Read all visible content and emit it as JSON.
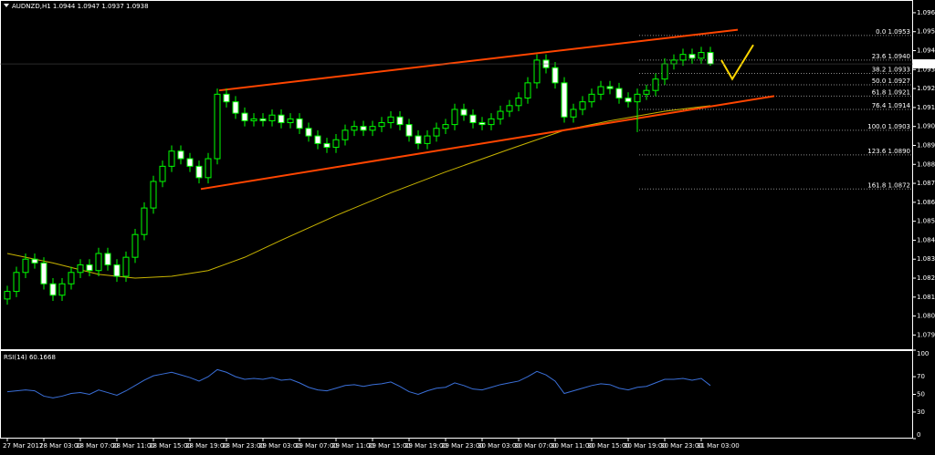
{
  "chart_data": [
    {
      "type": "candlestick",
      "title": "AUDNZD,H1  1.0944 1.0947 1.0937 1.0938",
      "open": [
        1.0814,
        1.0818,
        1.0828,
        1.0835,
        1.0833,
        1.0822,
        1.0816,
        1.0822,
        1.0828,
        1.0832,
        1.0829,
        1.0838,
        1.0832,
        1.0826,
        1.0836,
        1.0848,
        1.0862,
        1.0876,
        1.0884,
        1.0892,
        1.0888,
        1.0884,
        1.0878,
        1.0888,
        1.0922,
        1.0918,
        1.0912,
        1.0908,
        1.0909,
        1.0908,
        1.0911,
        1.0907,
        1.0909,
        1.0904,
        1.09,
        1.0896,
        1.0894,
        1.0898,
        1.0903,
        1.0905,
        1.0903,
        1.0905,
        1.0907,
        1.091,
        1.0906,
        1.09,
        1.0896,
        1.09,
        1.0904,
        1.0906,
        1.0914,
        1.0911,
        1.0907,
        1.0906,
        1.0909,
        1.0913,
        1.0916,
        1.092,
        1.0928,
        1.094,
        1.0936,
        1.0928,
        1.091,
        1.0914,
        1.0918,
        1.0922,
        1.0926,
        1.0925,
        1.092,
        1.0918,
        1.0922,
        1.0924,
        1.093,
        1.0938,
        1.094,
        1.0943,
        1.0941,
        1.0944
      ],
      "high": [
        1.0821,
        1.0831,
        1.0838,
        1.0838,
        1.0836,
        1.0825,
        1.0825,
        1.0831,
        1.0835,
        1.0835,
        1.0841,
        1.0841,
        1.0835,
        1.0839,
        1.0851,
        1.0865,
        1.0879,
        1.0887,
        1.0895,
        1.0895,
        1.0891,
        1.0887,
        1.0891,
        1.0925,
        1.0925,
        1.0921,
        1.0915,
        1.0912,
        1.0912,
        1.0914,
        1.0914,
        1.0912,
        1.0912,
        1.0907,
        1.0903,
        1.0899,
        1.0901,
        1.0906,
        1.0908,
        1.0908,
        1.0908,
        1.091,
        1.0913,
        1.0913,
        1.0909,
        1.0903,
        1.0903,
        1.0907,
        1.0909,
        1.0917,
        1.0917,
        1.0914,
        1.091,
        1.0912,
        1.0916,
        1.0919,
        1.0923,
        1.0931,
        1.0943,
        1.0943,
        1.0939,
        1.0931,
        1.0917,
        1.0921,
        1.0925,
        1.0929,
        1.0929,
        1.0928,
        1.0923,
        1.0925,
        1.0927,
        1.0933,
        1.0941,
        1.0943,
        1.0946,
        1.0946,
        1.0947,
        1.0947
      ],
      "low": [
        1.0811,
        1.0815,
        1.0825,
        1.083,
        1.0819,
        1.0813,
        1.0813,
        1.0819,
        1.0825,
        1.0826,
        1.0826,
        1.0829,
        1.0823,
        1.0823,
        1.0833,
        1.0845,
        1.0859,
        1.0873,
        1.0881,
        1.0885,
        1.0881,
        1.0875,
        1.0875,
        1.0885,
        1.0915,
        1.0909,
        1.0905,
        1.0905,
        1.0905,
        1.0905,
        1.0904,
        1.0904,
        1.0901,
        1.0897,
        1.0893,
        1.0891,
        1.0891,
        1.0895,
        1.09,
        1.09,
        1.09,
        1.0902,
        1.0904,
        1.0903,
        1.0897,
        1.0893,
        1.0893,
        1.0897,
        1.0901,
        1.0903,
        1.0908,
        1.0904,
        1.0903,
        1.0903,
        1.0906,
        1.091,
        1.0913,
        1.0917,
        1.0925,
        1.0933,
        1.0925,
        1.0907,
        1.0907,
        1.0911,
        1.0915,
        1.0919,
        1.0922,
        1.0917,
        1.0915,
        1.0902,
        1.0919,
        1.0921,
        1.0927,
        1.0935,
        1.0937,
        1.0938,
        1.0938,
        1.0937
      ],
      "close": [
        1.0818,
        1.0828,
        1.0835,
        1.0833,
        1.0822,
        1.0816,
        1.0822,
        1.0828,
        1.0832,
        1.0829,
        1.0838,
        1.0832,
        1.0826,
        1.0836,
        1.0848,
        1.0862,
        1.0876,
        1.0884,
        1.0892,
        1.0888,
        1.0884,
        1.0878,
        1.0888,
        1.0922,
        1.0918,
        1.0912,
        1.0908,
        1.0909,
        1.0908,
        1.0911,
        1.0907,
        1.0909,
        1.0904,
        1.09,
        1.0896,
        1.0894,
        1.0898,
        1.0903,
        1.0905,
        1.0903,
        1.0905,
        1.0907,
        1.091,
        1.0906,
        1.09,
        1.0896,
        1.09,
        1.0904,
        1.0906,
        1.0914,
        1.0911,
        1.0907,
        1.0906,
        1.0909,
        1.0913,
        1.0916,
        1.092,
        1.0928,
        1.094,
        1.0936,
        1.0928,
        1.091,
        1.0914,
        1.0918,
        1.0922,
        1.0926,
        1.0925,
        1.092,
        1.0918,
        1.0922,
        1.0924,
        1.093,
        1.0938,
        1.094,
        1.0943,
        1.0941,
        1.0944,
        1.0938
      ],
      "ma": {
        "color": "#c8b400",
        "x": [
          0,
          5,
          10,
          14,
          18,
          22,
          26,
          30,
          36,
          42,
          48,
          55,
          61,
          66,
          72,
          77
        ],
        "values": [
          1.0838,
          1.0833,
          1.0827,
          1.0825,
          1.0826,
          1.0829,
          1.0836,
          1.0845,
          1.0858,
          1.087,
          1.0881,
          1.0893,
          1.0903,
          1.0908,
          1.0913,
          1.0916
        ]
      },
      "trendlines": [
        {
          "color": "#ff4500",
          "x": [
            23.2,
            80
          ],
          "values": [
            1.0924,
            1.0956
          ]
        },
        {
          "color": "#ff4500",
          "x": [
            21.2,
            84
          ],
          "values": [
            1.0872,
            1.0921
          ]
        },
        {
          "color": "#ffd700",
          "x": [
            78.2,
            79.4,
            81.7
          ],
          "values": [
            1.094,
            1.093,
            1.0948
          ]
        }
      ],
      "fib_levels": [
        {
          "value": 1.0953,
          "label": "0.0  1.0953"
        },
        {
          "value": 1.094,
          "label": "23.6  1.0940"
        },
        {
          "value": 1.0933,
          "label": "38.2  1.0933"
        },
        {
          "value": 1.0927,
          "label": "50.0  1.0927"
        },
        {
          "value": 1.0921,
          "label": "61.8  1.0921"
        },
        {
          "value": 1.0914,
          "label": "76.4  1.0914"
        },
        {
          "value": 1.0903,
          "label": "100.0  1.0903"
        },
        {
          "value": 1.089,
          "label": "123.6  1.0890"
        },
        {
          "value": 1.0872,
          "label": "161.8  1.0872"
        }
      ],
      "current_price": 1.0938,
      "bull_color": "#000000",
      "bear_color": "#ffffff",
      "outline_color": "#00ff00",
      "xlim": [
        -0.8,
        99.2
      ],
      "xticks": [
        {
          "value": 0,
          "label": "27 Mar 2017"
        },
        {
          "value": 4,
          "label": "28 Mar 03:00"
        },
        {
          "value": 8,
          "label": "28 Mar 07:00"
        },
        {
          "value": 12,
          "label": "28 Mar 11:00"
        },
        {
          "value": 16,
          "label": "28 Mar 15:00"
        },
        {
          "value": 20,
          "label": "28 Mar 19:00"
        },
        {
          "value": 24,
          "label": "28 Mar 23:00"
        },
        {
          "value": 28,
          "label": "29 Mar 03:00"
        },
        {
          "value": 32,
          "label": "29 Mar 07:00"
        },
        {
          "value": 36,
          "label": "29 Mar 11:00"
        },
        {
          "value": 40,
          "label": "29 Mar 15:00"
        },
        {
          "value": 44,
          "label": "29 Mar 19:00"
        },
        {
          "value": 48,
          "label": "29 Mar 23:00"
        },
        {
          "value": 52,
          "label": "30 Mar 03:00"
        },
        {
          "value": 56,
          "label": "30 Mar 07:00"
        },
        {
          "value": 60,
          "label": "30 Mar 11:00"
        },
        {
          "value": 64,
          "label": "30 Mar 15:00"
        },
        {
          "value": 68,
          "label": "30 Mar 19:00"
        },
        {
          "value": 72,
          "label": "30 Mar 23:00"
        },
        {
          "value": 76,
          "label": "31 Mar 03:00"
        }
      ],
      "ylim": [
        1.07875,
        1.09717
      ],
      "yticks": [
        1.0965,
        1.0955,
        1.0945,
        1.0935,
        1.0925,
        1.0915,
        1.0905,
        1.0895,
        1.0885,
        1.0875,
        1.0865,
        1.0855,
        1.0845,
        1.0835,
        1.0825,
        1.0815,
        1.0805,
        1.0795
      ]
    },
    {
      "type": "line",
      "title": "RSI(14) 60.1668",
      "color": "#3a6fd8",
      "values": [
        53,
        54,
        55,
        54,
        48,
        46,
        48,
        51,
        52,
        50,
        55,
        52,
        49,
        54,
        60,
        66,
        71,
        73,
        75,
        72,
        69,
        65,
        70,
        78,
        75,
        70,
        67,
        68,
        67,
        69,
        66,
        67,
        63,
        58,
        55,
        54,
        57,
        60,
        61,
        59,
        61,
        62,
        64,
        59,
        53,
        50,
        54,
        57,
        58,
        63,
        60,
        56,
        55,
        58,
        61,
        63,
        65,
        70,
        76,
        72,
        65,
        51,
        54,
        57,
        60,
        62,
        61,
        57,
        55,
        58,
        59,
        63,
        67,
        67,
        68,
        66,
        68,
        60
      ],
      "xlim": [
        -0.8,
        99.2
      ],
      "ylim": [
        0,
        100
      ],
      "yticks": [
        100,
        70,
        50,
        30,
        0
      ]
    }
  ]
}
